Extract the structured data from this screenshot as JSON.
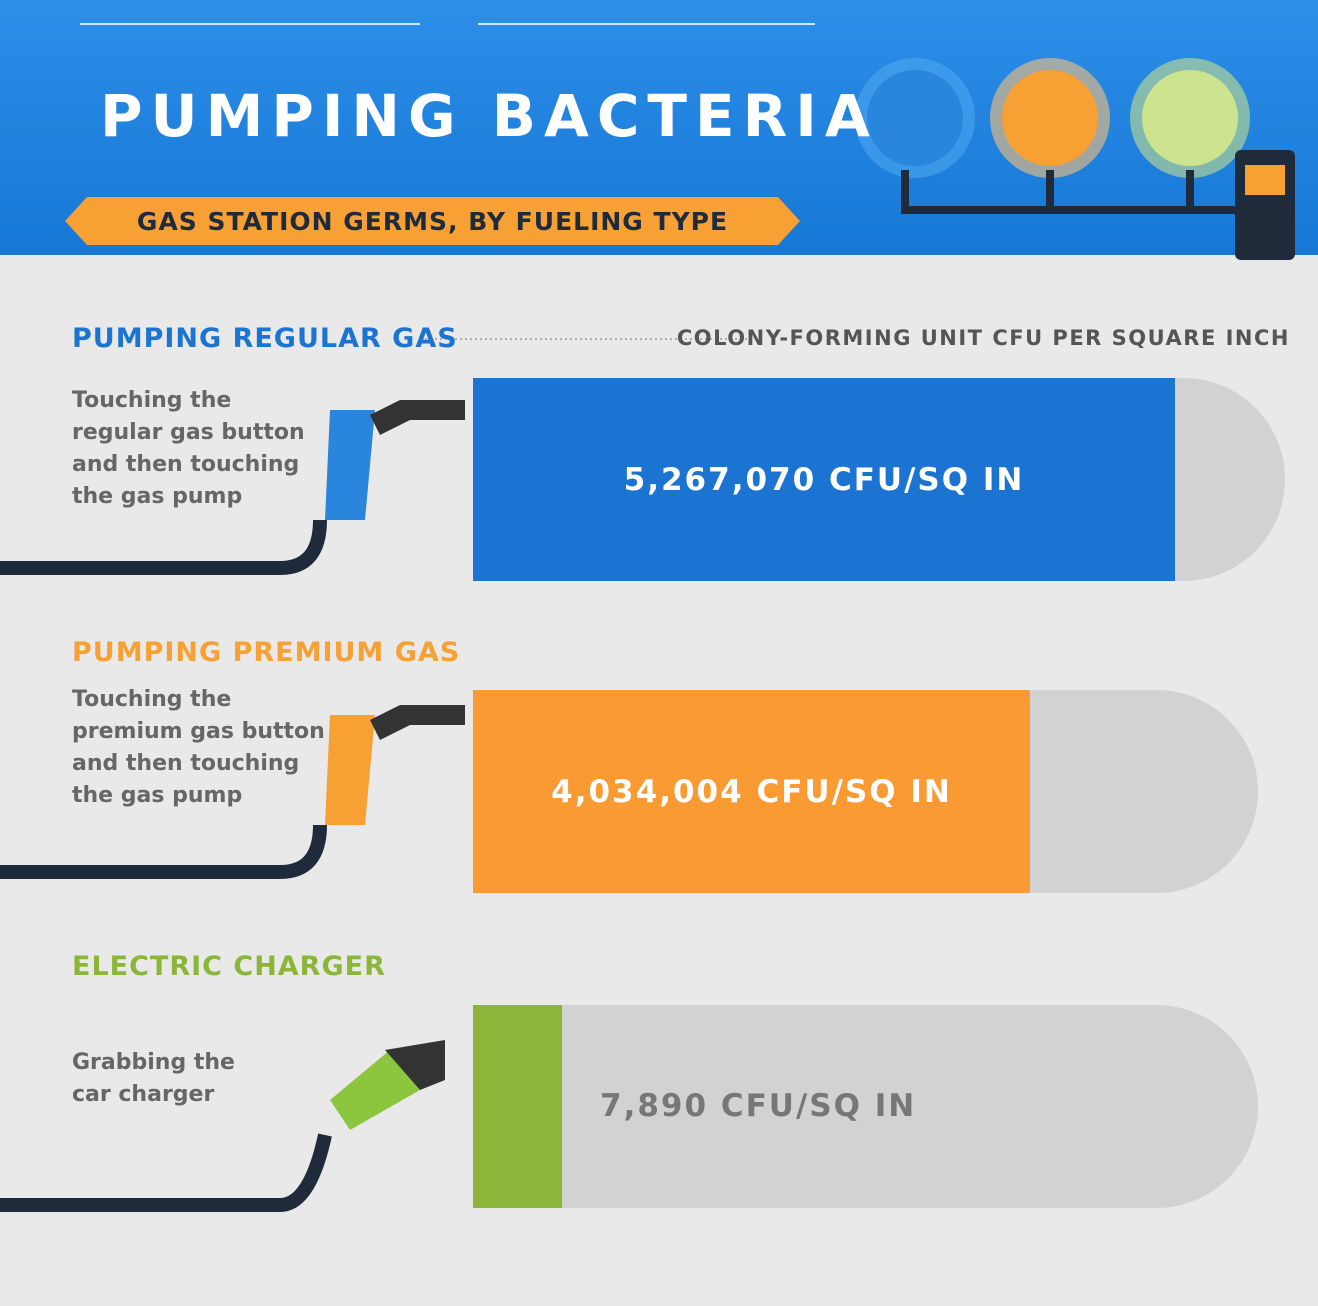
{
  "header": {
    "title": "PUMPING BACTERIA",
    "subtitle": "GAS STATION GERMS, BY FUELING TYPE"
  },
  "unit_label": "COLONY-FORMING UNIT CFU PER SQUARE INCH",
  "items": [
    {
      "heading": "PUMPING REGULAR GAS",
      "description": [
        "Touching the",
        "regular gas button",
        "and then touching",
        "the gas pump"
      ],
      "value_label": "5,267,070 CFU/SQ IN"
    },
    {
      "heading": "PUMPING PREMIUM GAS",
      "description": [
        "Touching the",
        "premium gas button",
        "and then touching",
        "the gas pump"
      ],
      "value_label": "4,034,004 CFU/SQ IN"
    },
    {
      "heading": "ELECTRIC CHARGER",
      "description": [
        "Grabbing the",
        "car charger"
      ],
      "value_label": "7,890 CFU/SQ IN"
    }
  ]
}
